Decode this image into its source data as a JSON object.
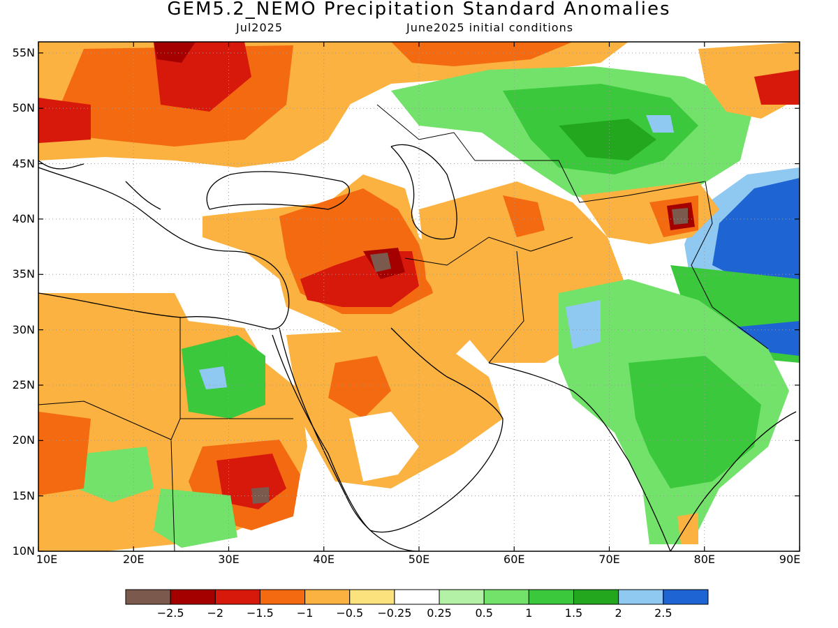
{
  "title": "GEM5.2_NEMO Precipitation Standard Anomalies",
  "valid_month": "Jul2025",
  "init_text": "June2025 initial conditions",
  "axes": {
    "lon_ticks": [
      "10E",
      "20E",
      "30E",
      "40E",
      "50E",
      "60E",
      "70E",
      "80E",
      "90E"
    ],
    "lat_ticks": [
      "55N",
      "50N",
      "45N",
      "40N",
      "35N",
      "30N",
      "25N",
      "20N",
      "15N",
      "10N"
    ],
    "lon_range": [
      10,
      90
    ],
    "lat_range": [
      10,
      56
    ],
    "grid": "dotted"
  },
  "colorbar": {
    "labels": [
      "−2.5",
      "−2",
      "−1.5",
      "−1",
      "−0.5",
      "−0.25",
      "0.25",
      "0.5",
      "1",
      "1.5",
      "2",
      "2.5"
    ],
    "colors": [
      "#7b5a4d",
      "#a50000",
      "#d7190b",
      "#f46a10",
      "#fbb240",
      "#fbe27c",
      "#ffffff",
      "#b3f2a6",
      "#73e26a",
      "#3cc83c",
      "#22a71e",
      "#8fc8f0",
      "#1e64d2"
    ]
  }
}
